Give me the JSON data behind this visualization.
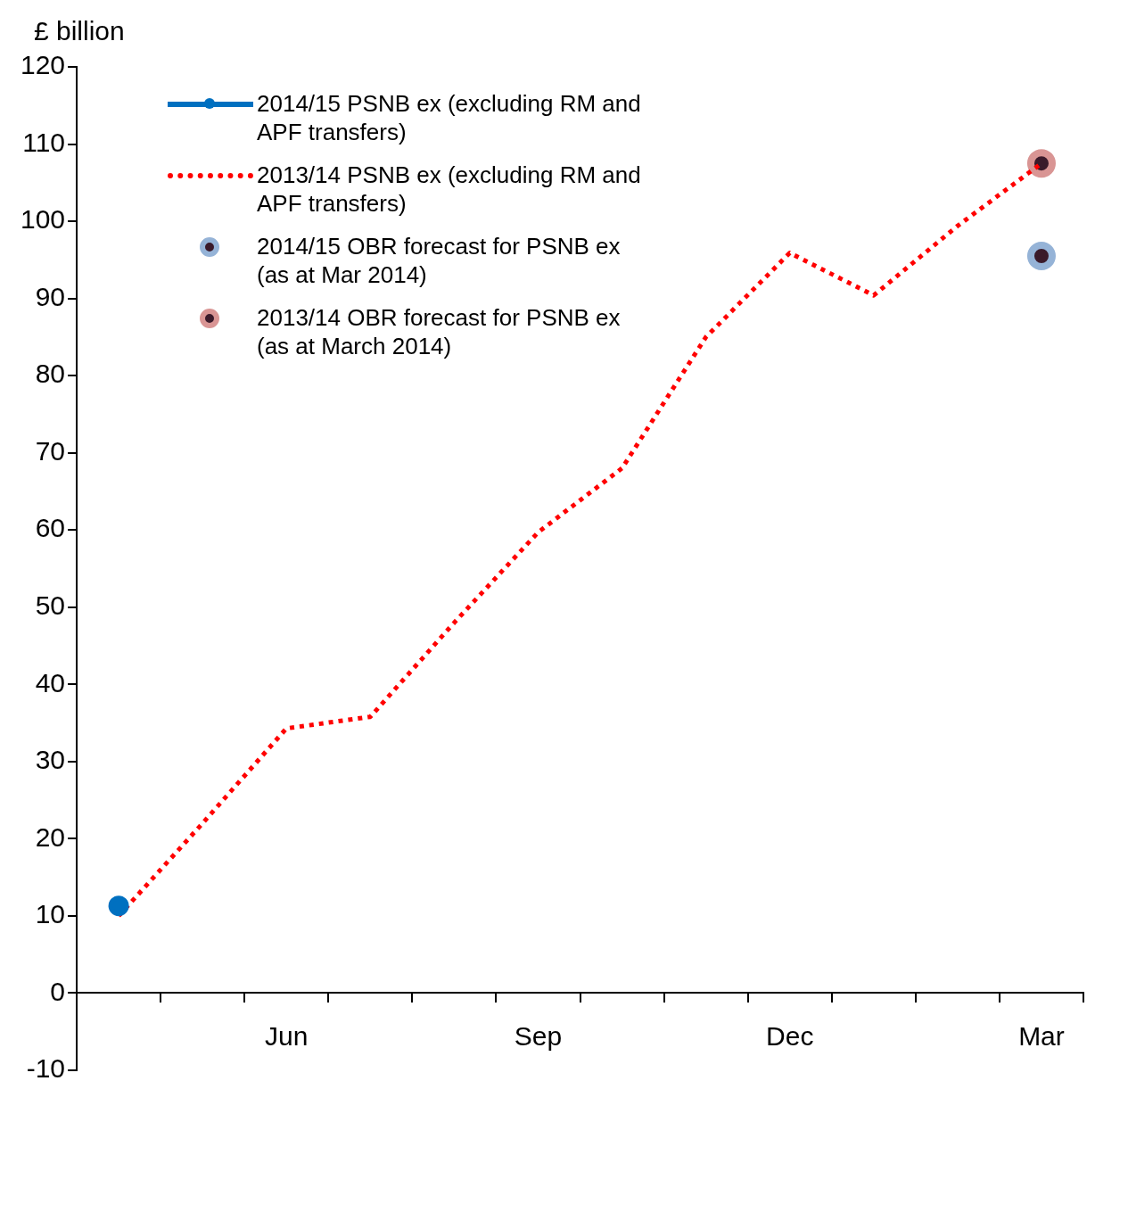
{
  "chart_data": {
    "type": "line",
    "ylabel": "£ billion",
    "categories": [
      null,
      null,
      "Jun",
      null,
      null,
      "Sep",
      null,
      null,
      "Dec",
      null,
      null,
      "Mar"
    ],
    "ylim": [
      -10,
      120
    ],
    "yticks": [
      -10,
      0,
      10,
      20,
      30,
      40,
      50,
      60,
      70,
      80,
      90,
      100,
      110,
      120
    ],
    "grid": false,
    "legend": "top left",
    "series": [
      {
        "name": "2014/15 PSNB ex (excluding RM and APF transfers)",
        "color": "#0070c0",
        "line_style": "solid",
        "marker": "circle",
        "values": [
          11.3,
          null,
          null,
          null,
          null,
          null,
          null,
          null,
          null,
          null,
          null,
          null
        ]
      },
      {
        "name": "2013/14 PSNB ex (excluding RM and APF transfers)",
        "color": "#ff0000",
        "line_style": "dotted",
        "marker": "none",
        "values": [
          10,
          22,
          34.3,
          35.8,
          48,
          59.7,
          68,
          85,
          95.9,
          90.4,
          99.4,
          107.5
        ]
      },
      {
        "name": "2014/15 OBR forecast for PSNB ex (as at Mar 2014)",
        "type": "scatter",
        "color": "#95b3d7",
        "marker": "circle",
        "values": [
          null,
          null,
          null,
          null,
          null,
          null,
          null,
          null,
          null,
          null,
          null,
          95.5
        ]
      },
      {
        "name": "2013/14 OBR forecast for PSNB ex (as at March 2014)",
        "type": "scatter",
        "color": "#d99594",
        "marker": "circle",
        "values": [
          null,
          null,
          null,
          null,
          null,
          null,
          null,
          null,
          null,
          null,
          null,
          107.5
        ]
      }
    ]
  }
}
